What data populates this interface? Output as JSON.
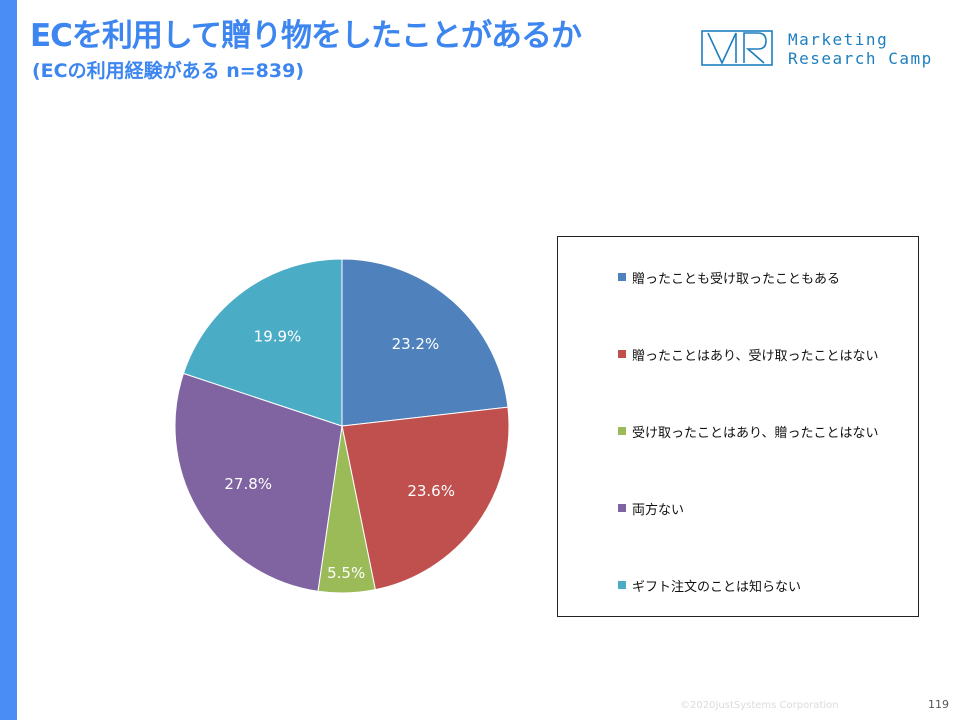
{
  "title": "ECを利用して贈り物をしたことがあるか",
  "subtitle": "(ECの利用経験がある n=839)",
  "logo": {
    "line1": "Marketing",
    "line2": "Research Camp",
    "icon": "mrc-logo-mark",
    "color": "#1d7fbf"
  },
  "chart_data": {
    "type": "pie",
    "title": "ECを利用して贈り物をしたことがあるか",
    "subtitle": "(ECの利用経験がある n=839)",
    "start": "12 o'clock, clockwise",
    "legend_position": "right",
    "slices": [
      {
        "label": "贈ったことも受け取ったこともある",
        "value": 23.2,
        "display": "23.2%",
        "color": "#4f81bd"
      },
      {
        "label": "贈ったことはあり、受け取ったことはない",
        "value": 23.6,
        "display": "23.6%",
        "color": "#c0504d"
      },
      {
        "label": "受け取ったことはあり、贈ったことはない",
        "value": 5.5,
        "display": "5.5%",
        "color": "#9bbb59"
      },
      {
        "label": "両方ない",
        "value": 27.8,
        "display": "27.8%",
        "color": "#8064a2"
      },
      {
        "label": "ギフト注文のことは知らない",
        "value": 19.9,
        "display": "19.9%",
        "color": "#4bacc6"
      }
    ]
  },
  "footer": {
    "copyright": "©2020JustSystems Corporation",
    "page": "119"
  }
}
